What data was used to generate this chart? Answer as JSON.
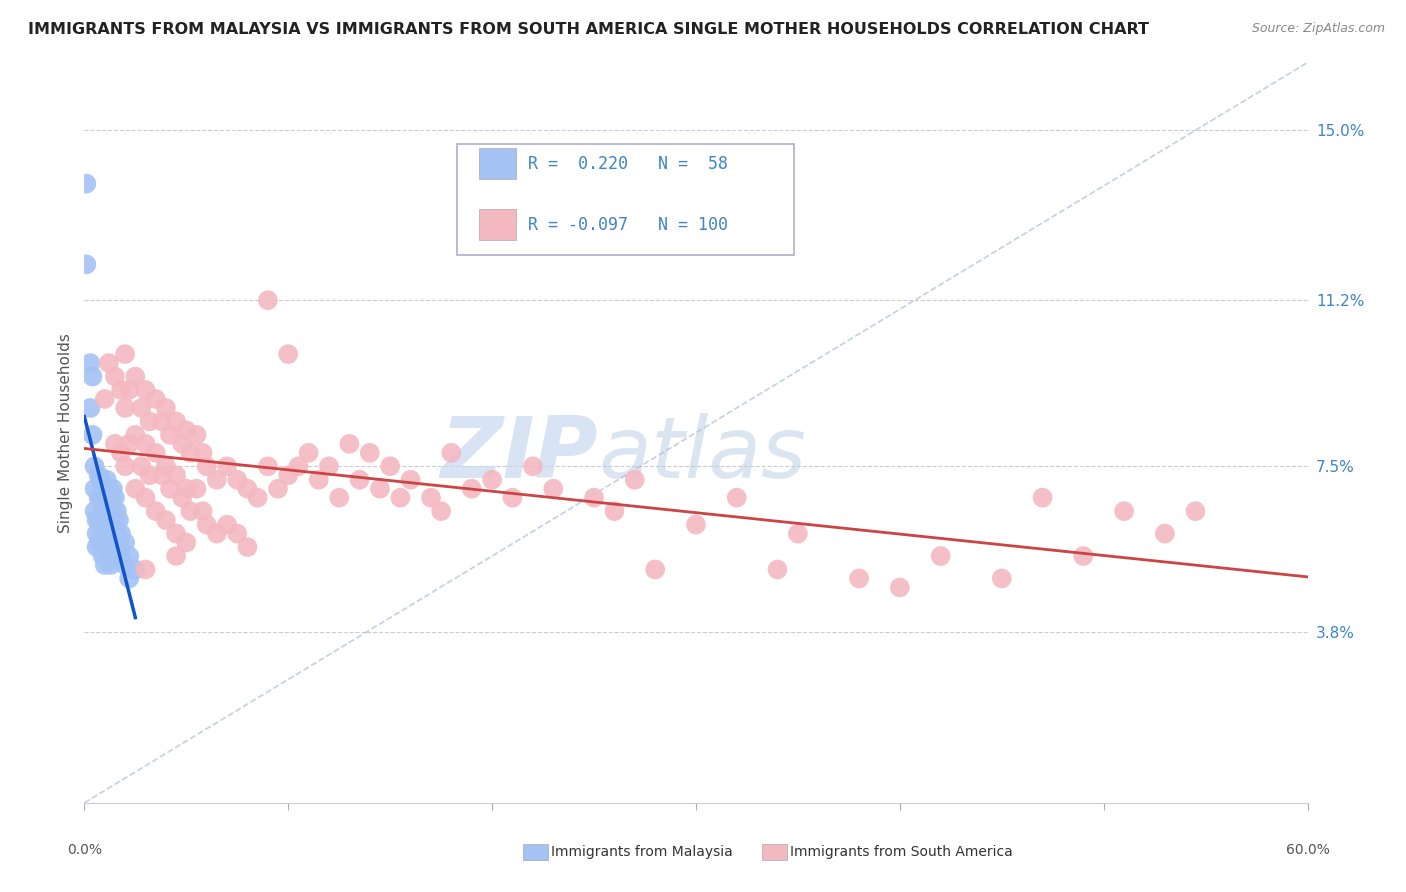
{
  "title": "IMMIGRANTS FROM MALAYSIA VS IMMIGRANTS FROM SOUTH AMERICA SINGLE MOTHER HOUSEHOLDS CORRELATION CHART",
  "source": "Source: ZipAtlas.com",
  "ylabel": "Single Mother Households",
  "yticks": [
    0.038,
    0.075,
    0.112,
    0.15
  ],
  "ytick_labels": [
    "3.8%",
    "7.5%",
    "11.2%",
    "15.0%"
  ],
  "xlim": [
    0.0,
    0.6
  ],
  "ylim": [
    0.0,
    0.165
  ],
  "R_malaysia": 0.22,
  "N_malaysia": 58,
  "R_south_america": -0.097,
  "N_south_america": 100,
  "malaysia_color": "#a4c2f4",
  "south_america_color": "#f4b8c1",
  "malaysia_line_color": "#1155cc",
  "south_america_line_color": "#cc4444",
  "watermark_zip": "ZIP",
  "watermark_atlas": "atlas",
  "scatter_malaysia": [
    [
      0.001,
      0.138
    ],
    [
      0.001,
      0.12
    ],
    [
      0.003,
      0.098
    ],
    [
      0.003,
      0.088
    ],
    [
      0.004,
      0.095
    ],
    [
      0.004,
      0.082
    ],
    [
      0.005,
      0.075
    ],
    [
      0.005,
      0.07
    ],
    [
      0.005,
      0.065
    ],
    [
      0.006,
      0.063
    ],
    [
      0.006,
      0.06
    ],
    [
      0.006,
      0.057
    ],
    [
      0.007,
      0.073
    ],
    [
      0.007,
      0.068
    ],
    [
      0.007,
      0.063
    ],
    [
      0.007,
      0.058
    ],
    [
      0.008,
      0.072
    ],
    [
      0.008,
      0.068
    ],
    [
      0.008,
      0.063
    ],
    [
      0.008,
      0.058
    ],
    [
      0.009,
      0.07
    ],
    [
      0.009,
      0.065
    ],
    [
      0.009,
      0.06
    ],
    [
      0.009,
      0.055
    ],
    [
      0.01,
      0.068
    ],
    [
      0.01,
      0.063
    ],
    [
      0.01,
      0.058
    ],
    [
      0.01,
      0.053
    ],
    [
      0.011,
      0.072
    ],
    [
      0.011,
      0.067
    ],
    [
      0.011,
      0.062
    ],
    [
      0.011,
      0.057
    ],
    [
      0.012,
      0.07
    ],
    [
      0.012,
      0.065
    ],
    [
      0.012,
      0.06
    ],
    [
      0.012,
      0.055
    ],
    [
      0.013,
      0.068
    ],
    [
      0.013,
      0.063
    ],
    [
      0.013,
      0.058
    ],
    [
      0.013,
      0.053
    ],
    [
      0.014,
      0.07
    ],
    [
      0.014,
      0.065
    ],
    [
      0.014,
      0.06
    ],
    [
      0.014,
      0.055
    ],
    [
      0.015,
      0.068
    ],
    [
      0.015,
      0.063
    ],
    [
      0.015,
      0.058
    ],
    [
      0.016,
      0.065
    ],
    [
      0.016,
      0.06
    ],
    [
      0.017,
      0.063
    ],
    [
      0.017,
      0.058
    ],
    [
      0.018,
      0.06
    ],
    [
      0.018,
      0.055
    ],
    [
      0.02,
      0.058
    ],
    [
      0.02,
      0.053
    ],
    [
      0.022,
      0.055
    ],
    [
      0.022,
      0.05
    ],
    [
      0.025,
      0.052
    ]
  ],
  "scatter_south_america": [
    [
      0.01,
      0.09
    ],
    [
      0.012,
      0.098
    ],
    [
      0.015,
      0.095
    ],
    [
      0.015,
      0.08
    ],
    [
      0.018,
      0.092
    ],
    [
      0.018,
      0.078
    ],
    [
      0.02,
      0.1
    ],
    [
      0.02,
      0.088
    ],
    [
      0.02,
      0.075
    ],
    [
      0.022,
      0.092
    ],
    [
      0.022,
      0.08
    ],
    [
      0.025,
      0.095
    ],
    [
      0.025,
      0.082
    ],
    [
      0.025,
      0.07
    ],
    [
      0.028,
      0.088
    ],
    [
      0.028,
      0.075
    ],
    [
      0.03,
      0.092
    ],
    [
      0.03,
      0.08
    ],
    [
      0.03,
      0.068
    ],
    [
      0.032,
      0.085
    ],
    [
      0.032,
      0.073
    ],
    [
      0.035,
      0.09
    ],
    [
      0.035,
      0.078
    ],
    [
      0.035,
      0.065
    ],
    [
      0.038,
      0.085
    ],
    [
      0.038,
      0.073
    ],
    [
      0.04,
      0.088
    ],
    [
      0.04,
      0.075
    ],
    [
      0.04,
      0.063
    ],
    [
      0.042,
      0.082
    ],
    [
      0.042,
      0.07
    ],
    [
      0.045,
      0.085
    ],
    [
      0.045,
      0.073
    ],
    [
      0.045,
      0.06
    ],
    [
      0.048,
      0.08
    ],
    [
      0.048,
      0.068
    ],
    [
      0.05,
      0.083
    ],
    [
      0.05,
      0.07
    ],
    [
      0.05,
      0.058
    ],
    [
      0.052,
      0.078
    ],
    [
      0.052,
      0.065
    ],
    [
      0.055,
      0.082
    ],
    [
      0.055,
      0.07
    ],
    [
      0.058,
      0.078
    ],
    [
      0.058,
      0.065
    ],
    [
      0.06,
      0.075
    ],
    [
      0.06,
      0.062
    ],
    [
      0.065,
      0.072
    ],
    [
      0.065,
      0.06
    ],
    [
      0.07,
      0.075
    ],
    [
      0.07,
      0.062
    ],
    [
      0.075,
      0.072
    ],
    [
      0.075,
      0.06
    ],
    [
      0.08,
      0.07
    ],
    [
      0.08,
      0.057
    ],
    [
      0.085,
      0.068
    ],
    [
      0.09,
      0.112
    ],
    [
      0.09,
      0.075
    ],
    [
      0.095,
      0.07
    ],
    [
      0.1,
      0.1
    ],
    [
      0.1,
      0.073
    ],
    [
      0.105,
      0.075
    ],
    [
      0.11,
      0.078
    ],
    [
      0.115,
      0.072
    ],
    [
      0.12,
      0.075
    ],
    [
      0.125,
      0.068
    ],
    [
      0.13,
      0.08
    ],
    [
      0.135,
      0.072
    ],
    [
      0.14,
      0.078
    ],
    [
      0.145,
      0.07
    ],
    [
      0.15,
      0.075
    ],
    [
      0.155,
      0.068
    ],
    [
      0.16,
      0.072
    ],
    [
      0.17,
      0.068
    ],
    [
      0.175,
      0.065
    ],
    [
      0.18,
      0.078
    ],
    [
      0.19,
      0.07
    ],
    [
      0.2,
      0.072
    ],
    [
      0.21,
      0.068
    ],
    [
      0.22,
      0.075
    ],
    [
      0.23,
      0.07
    ],
    [
      0.25,
      0.068
    ],
    [
      0.26,
      0.065
    ],
    [
      0.27,
      0.072
    ],
    [
      0.28,
      0.052
    ],
    [
      0.3,
      0.062
    ],
    [
      0.32,
      0.068
    ],
    [
      0.34,
      0.052
    ],
    [
      0.35,
      0.06
    ],
    [
      0.38,
      0.05
    ],
    [
      0.4,
      0.048
    ],
    [
      0.42,
      0.055
    ],
    [
      0.45,
      0.05
    ],
    [
      0.47,
      0.068
    ],
    [
      0.49,
      0.055
    ],
    [
      0.51,
      0.065
    ],
    [
      0.53,
      0.06
    ],
    [
      0.545,
      0.065
    ],
    [
      0.03,
      0.052
    ],
    [
      0.045,
      0.055
    ]
  ]
}
